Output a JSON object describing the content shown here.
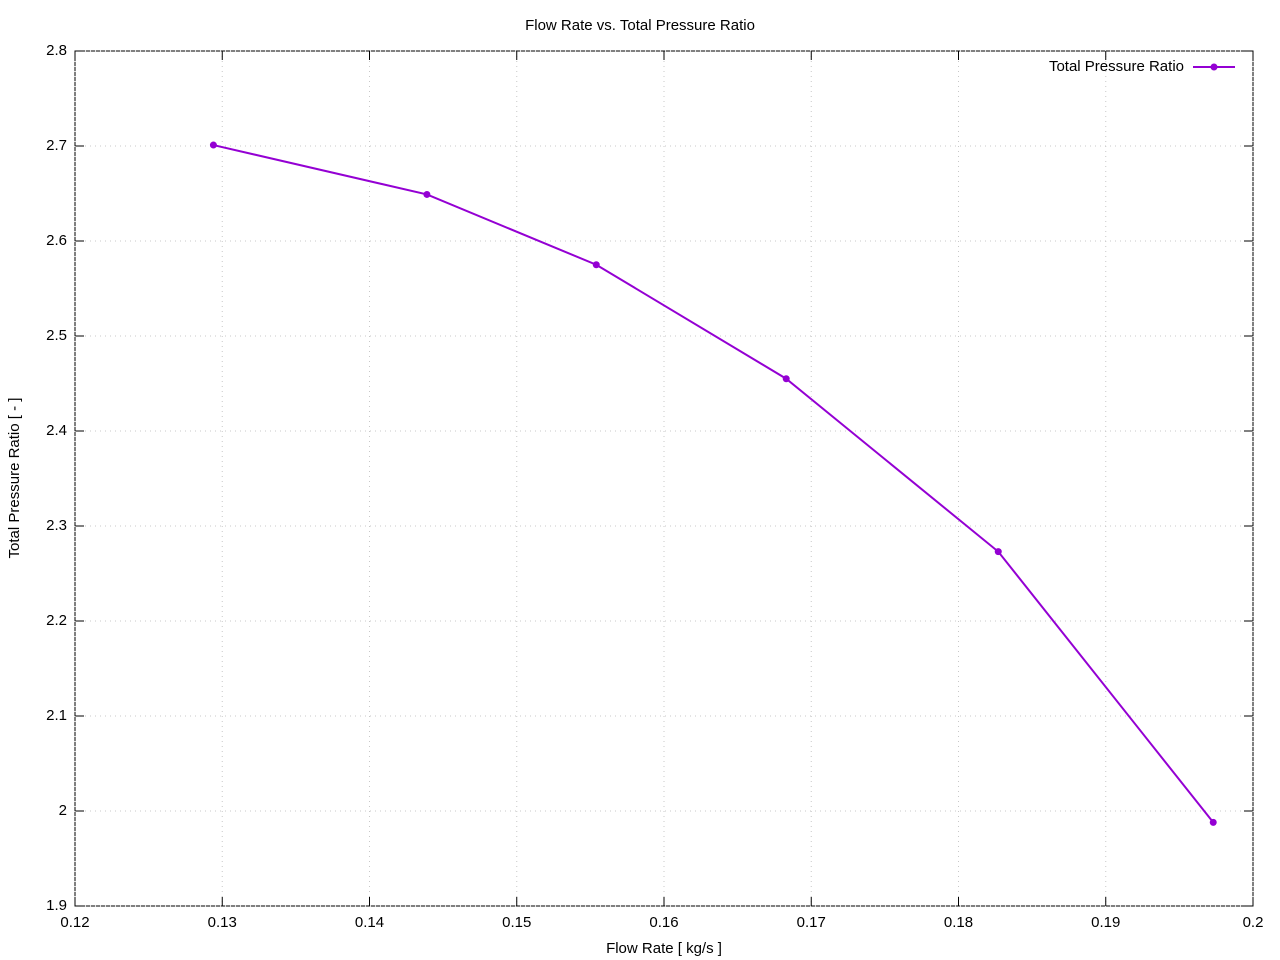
{
  "chart_data": {
    "type": "line",
    "title": "Flow Rate vs. Total Pressure Ratio",
    "x_label": "Flow Rate [ kg/s ]",
    "y_label": "Total Pressure Ratio [ - ]",
    "x": [
      0.1294,
      0.1439,
      0.1554,
      0.1683,
      0.1827,
      0.1973
    ],
    "series": [
      {
        "name": "Total Pressure Ratio",
        "color": "#9400d3",
        "values": [
          2.701,
          2.649,
          2.575,
          2.455,
          2.273,
          1.988
        ]
      }
    ],
    "xlim": [
      0.12,
      0.2
    ],
    "xticks": [
      0.12,
      0.13,
      0.14,
      0.15,
      0.16,
      0.17,
      0.18,
      0.19,
      0.2
    ],
    "ylim": [
      1.9,
      2.8
    ],
    "yticks": [
      1.9,
      2,
      2.1,
      2.2,
      2.3,
      2.4,
      2.5,
      2.6,
      2.7,
      2.8
    ],
    "grid": true,
    "legend": "top-right"
  }
}
